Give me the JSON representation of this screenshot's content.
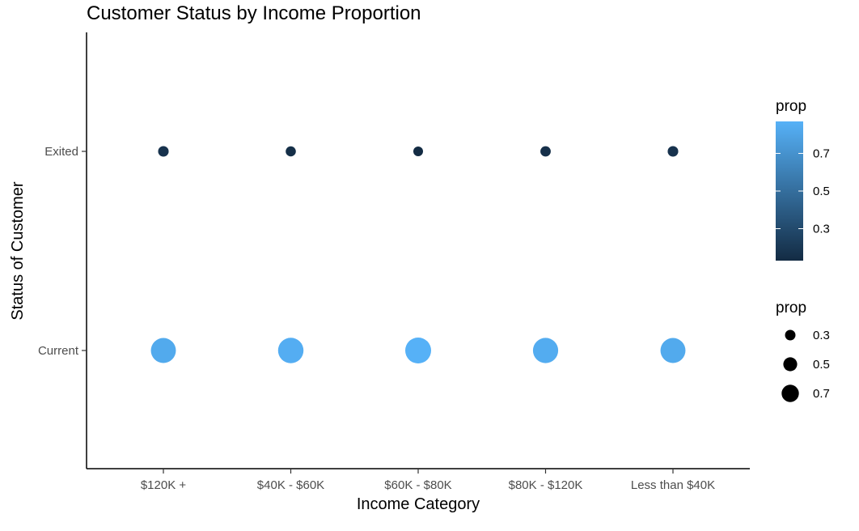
{
  "chart_data": {
    "type": "scatter",
    "title": "Customer Status by Income Proportion",
    "xlabel": "Income Category",
    "ylabel": "Status of Customer",
    "categories": [
      "$120K +",
      "$40K - $60K",
      "$60K - $80K",
      "$80K - $120K",
      "Less than $40K"
    ],
    "y_categories": [
      "Current",
      "Exited"
    ],
    "points": [
      {
        "x": "$120K +",
        "y": "Exited",
        "prop": 0.17
      },
      {
        "x": "$40K - $60K",
        "y": "Exited",
        "prop": 0.15
      },
      {
        "x": "$60K - $80K",
        "y": "Exited",
        "prop": 0.13
      },
      {
        "x": "$80K - $120K",
        "y": "Exited",
        "prop": 0.16
      },
      {
        "x": "Less than $40K",
        "y": "Exited",
        "prop": 0.17
      },
      {
        "x": "$120K +",
        "y": "Current",
        "prop": 0.83
      },
      {
        "x": "$40K - $60K",
        "y": "Current",
        "prop": 0.85
      },
      {
        "x": "$60K - $80K",
        "y": "Current",
        "prop": 0.87
      },
      {
        "x": "$80K - $120K",
        "y": "Current",
        "prop": 0.84
      },
      {
        "x": "Less than $40K",
        "y": "Current",
        "prop": 0.83
      }
    ],
    "color_scale": {
      "low": "#132b43",
      "high": "#56b1f7",
      "range": [
        0.13,
        0.87
      ]
    },
    "size_scale": {
      "range": [
        0.13,
        0.87
      ]
    },
    "legend_color": {
      "title": "prop",
      "ticks": [
        "0.7",
        "0.5",
        "0.3"
      ],
      "tick_values": [
        0.7,
        0.5,
        0.3
      ]
    },
    "legend_size": {
      "title": "prop",
      "ticks": [
        "0.3",
        "0.5",
        "0.7"
      ],
      "tick_values": [
        0.3,
        0.5,
        0.7
      ],
      "color": "#000000"
    },
    "legend_position": "right",
    "grid": false
  }
}
